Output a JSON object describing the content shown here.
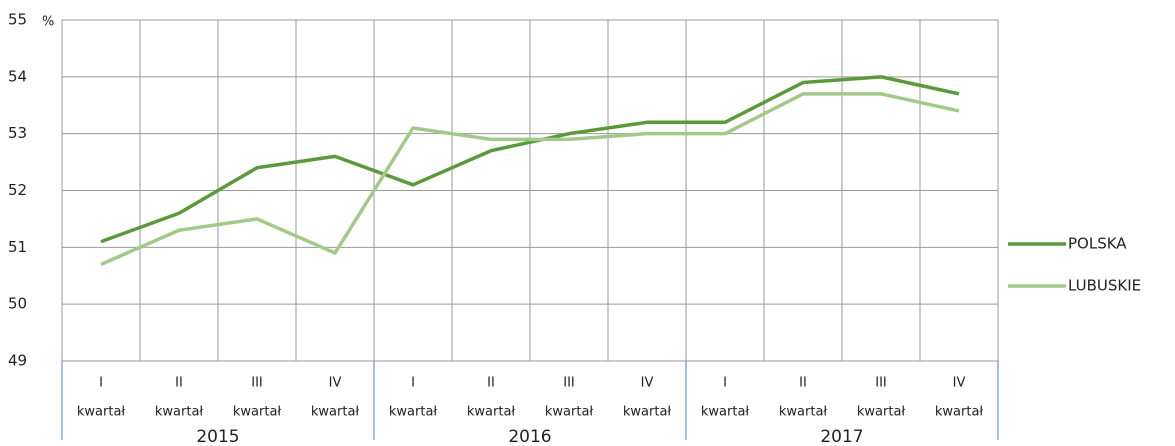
{
  "chart_data": {
    "type": "line",
    "y_unit": "%",
    "categories": [
      [
        "I",
        "kwartał"
      ],
      [
        "II",
        "kwartał"
      ],
      [
        "III",
        "kwartał"
      ],
      [
        "IV",
        "kwartał"
      ],
      [
        "I",
        "kwartał"
      ],
      [
        "II",
        "kwartał"
      ],
      [
        "III",
        "kwartał"
      ],
      [
        "IV",
        "kwartał"
      ],
      [
        "I",
        "kwartał"
      ],
      [
        "II",
        "kwartał"
      ],
      [
        "III",
        "kwartał"
      ],
      [
        "IV",
        "kwartał"
      ]
    ],
    "groups": [
      "2015",
      "2016",
      "2017"
    ],
    "series": [
      {
        "name": "POLSKA",
        "color": "#5b9a3c",
        "values": [
          51.1,
          51.6,
          52.4,
          52.6,
          52.1,
          52.7,
          53.0,
          53.2,
          53.2,
          53.9,
          54.0,
          53.7
        ]
      },
      {
        "name": "LUBUSKIE",
        "color": "#a3c98a",
        "values": [
          50.7,
          51.3,
          51.5,
          50.9,
          53.1,
          52.9,
          52.9,
          53.0,
          53.0,
          53.7,
          53.7,
          53.4
        ]
      }
    ],
    "ylim": [
      49,
      55
    ],
    "yticks": [
      49,
      50,
      51,
      52,
      53,
      54,
      55
    ],
    "grid": true,
    "legend": "right"
  }
}
